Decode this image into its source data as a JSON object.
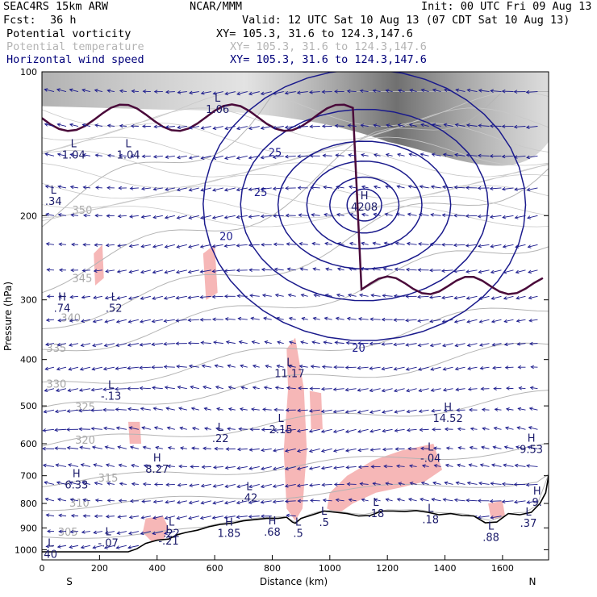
{
  "header": {
    "model": "SEAC4RS 15km ARW",
    "center": "NCAR/MMM",
    "init": "Init: 00 UTC Fri 09 Aug 13",
    "fcst_label": "Fcst:",
    "fcst_value": "36 h",
    "valid": "Valid: 12 UTC Sat 10 Aug 13 (07 CDT Sat 10 Aug 13)"
  },
  "fields": [
    {
      "name": "Potential vorticity",
      "xy": "XY= 105.3, 31.6 to 124.3,147.6",
      "color": "#000000"
    },
    {
      "name": "Potential temperature",
      "xy": "XY= 105.3, 31.6 to 124.3,147.6",
      "color": "#b4b4b4"
    },
    {
      "name": "Horizontal wind speed",
      "xy": "XY= 105.3, 31.6 to 124.3,147.6",
      "color": "#00007a"
    }
  ],
  "chart_data": {
    "type": "cross-section",
    "xlabel": "Distance (km)",
    "ylabel": "Pressure (hPa)",
    "xlim": [
      0,
      1760
    ],
    "ylim": [
      1050,
      100
    ],
    "y_scale": "log",
    "xticks": [
      0,
      200,
      400,
      600,
      800,
      1000,
      1200,
      1400,
      1600
    ],
    "yticks": [
      100,
      200,
      300,
      400,
      500,
      600,
      700,
      800,
      900,
      1000
    ],
    "endpoints": {
      "left": "S",
      "right": "N"
    },
    "terrain_surface_hPa": [
      [
        0,
        1010
      ],
      [
        150,
        1010
      ],
      [
        300,
        1010
      ],
      [
        330,
        995
      ],
      [
        360,
        970
      ],
      [
        400,
        955
      ],
      [
        440,
        950
      ],
      [
        470,
        930
      ],
      [
        500,
        920
      ],
      [
        540,
        910
      ],
      [
        580,
        895
      ],
      [
        620,
        885
      ],
      [
        660,
        880
      ],
      [
        700,
        870
      ],
      [
        740,
        865
      ],
      [
        780,
        860
      ],
      [
        820,
        860
      ],
      [
        850,
        855
      ],
      [
        870,
        875
      ],
      [
        880,
        880
      ],
      [
        900,
        860
      ],
      [
        940,
        845
      ],
      [
        980,
        830
      ],
      [
        1020,
        835
      ],
      [
        1060,
        840
      ],
      [
        1100,
        850
      ],
      [
        1140,
        848
      ],
      [
        1180,
        830
      ],
      [
        1220,
        830
      ],
      [
        1260,
        832
      ],
      [
        1300,
        828
      ],
      [
        1340,
        835
      ],
      [
        1380,
        845
      ],
      [
        1420,
        840
      ],
      [
        1460,
        848
      ],
      [
        1500,
        850
      ],
      [
        1540,
        878
      ],
      [
        1580,
        875
      ],
      [
        1620,
        840
      ],
      [
        1660,
        845
      ],
      [
        1700,
        835
      ],
      [
        1730,
        800
      ],
      [
        1750,
        760
      ],
      [
        1760,
        700
      ]
    ],
    "theta_contours_K": [
      {
        "value": 305,
        "label_x": 90,
        "label_p": 935
      },
      {
        "value": 310,
        "label_x": 130,
        "label_p": 812
      },
      {
        "value": 315,
        "label_x": 230,
        "label_p": 720
      },
      {
        "value": 320,
        "label_x": 150,
        "label_p": 600
      },
      {
        "value": 325,
        "label_x": 150,
        "label_p": 512
      },
      {
        "value": 330,
        "label_x": 50,
        "label_p": 458
      },
      {
        "value": 335,
        "label_x": 50,
        "label_p": 385
      },
      {
        "value": 340,
        "label_x": 100,
        "label_p": 333
      },
      {
        "value": 345,
        "label_x": 140,
        "label_p": 275
      },
      {
        "value": 350,
        "label_x": 140,
        "label_p": 198
      }
    ],
    "wind_speed_contours_ms": [
      {
        "value": 20,
        "label_x": 640,
        "label_p": 225
      },
      {
        "value": 25,
        "label_x": 760,
        "label_p": 182
      },
      {
        "value": 25,
        "label_x": 810,
        "label_p": 150
      },
      {
        "value": 20,
        "label_x": 1100,
        "label_p": 385
      }
    ],
    "extrema": [
      {
        "type": "L",
        "value": "1.04",
        "x": 110,
        "p": 152
      },
      {
        "type": "L",
        "value": "1.04",
        "x": 300,
        "p": 152
      },
      {
        "type": "L",
        "value": ".34",
        "x": 40,
        "p": 190
      },
      {
        "type": "L",
        "value": "1.06",
        "x": 610,
        "p": 122
      },
      {
        "type": "H",
        "value": "4208",
        "x": 1120,
        "p": 195
      },
      {
        "type": "H",
        "value": ".74",
        "x": 70,
        "p": 318
      },
      {
        "type": "L",
        "value": ".52",
        "x": 250,
        "p": 318
      },
      {
        "type": "L",
        "value": "11.17",
        "x": 860,
        "p": 435
      },
      {
        "type": "L",
        "value": "-.13",
        "x": 240,
        "p": 485
      },
      {
        "type": "H",
        "value": "14.52",
        "x": 1410,
        "p": 540
      },
      {
        "type": "L",
        "value": "2.15",
        "x": 830,
        "p": 570
      },
      {
        "type": "L",
        "value": ".22",
        "x": 620,
        "p": 595
      },
      {
        "type": "L",
        "value": "-.04",
        "x": 1350,
        "p": 655
      },
      {
        "type": "H",
        "value": "9.53",
        "x": 1700,
        "p": 628
      },
      {
        "type": "H",
        "value": "8.27",
        "x": 400,
        "p": 690
      },
      {
        "type": "H",
        "value": "6.33",
        "x": 120,
        "p": 745
      },
      {
        "type": "L",
        "value": ".42",
        "x": 720,
        "p": 792
      },
      {
        "type": "H",
        "value": "9.",
        "x": 1720,
        "p": 810
      },
      {
        "type": "L",
        "value": ".18",
        "x": 1160,
        "p": 855
      },
      {
        "type": "L",
        "value": ".18",
        "x": 1350,
        "p": 880
      },
      {
        "type": "L",
        "value": ".37",
        "x": 1690,
        "p": 895
      },
      {
        "type": "L",
        "value": ".5",
        "x": 980,
        "p": 892
      },
      {
        "type": "H",
        "value": ".68",
        "x": 800,
        "p": 935
      },
      {
        "type": "L",
        "value": ".5",
        "x": 890,
        "p": 940
      },
      {
        "type": "H",
        "value": "1.85",
        "x": 650,
        "p": 940
      },
      {
        "type": "L",
        "value": ".22",
        "x": 450,
        "p": 940
      },
      {
        "type": "L",
        "value": "-.21",
        "x": 440,
        "p": 975
      },
      {
        "type": "L",
        "value": "-.07",
        "x": 230,
        "p": 985
      },
      {
        "type": "L",
        "value": ".88",
        "x": 1560,
        "p": 958
      },
      {
        "type": "L",
        "value": "40",
        "x": 30,
        "p": 1040
      },
      {
        "type": "H",
        "value": "6.36",
        "x": 170,
        "p": 1068
      }
    ]
  }
}
